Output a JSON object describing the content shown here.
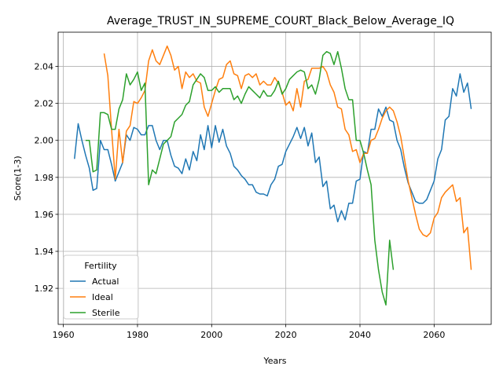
{
  "chart_data": {
    "type": "line",
    "title": "Average_TRUST_IN_SUPREME_COURT_Black_Below_Average_IQ",
    "xlabel": "Years",
    "ylabel": "Score(1-3)",
    "xlim": [
      1958.6,
      2075.4
    ],
    "ylim": [
      1.9005,
      2.0585
    ],
    "xticks": [
      1960,
      1980,
      2000,
      2020,
      2040,
      2060
    ],
    "yticks": [
      1.92,
      1.94,
      1.96,
      1.98,
      2.0,
      2.02,
      2.04
    ],
    "ytick_labels": [
      "1.92",
      "1.94",
      "1.96",
      "1.98",
      "2.00",
      "2.02",
      "2.04"
    ],
    "grid": true,
    "legend": {
      "title": "Fertility",
      "placement": "lower-left"
    },
    "series": [
      {
        "name": "Actual",
        "color": "#1f77b4",
        "x": [
          1963,
          1964,
          1965,
          1966,
          1967,
          1968,
          1969,
          1970,
          1971,
          1972,
          1973,
          1974,
          1975,
          1976,
          1977,
          1978,
          1979,
          1980,
          1981,
          1982,
          1983,
          1984,
          1985,
          1986,
          1987,
          1988,
          1989,
          1990,
          1991,
          1992,
          1993,
          1994,
          1995,
          1996,
          1997,
          1998,
          1999,
          2000,
          2001,
          2002,
          2003,
          2004,
          2005,
          2006,
          2007,
          2008,
          2009,
          2010,
          2011,
          2012,
          2013,
          2014,
          2015,
          2016,
          2017,
          2018,
          2019,
          2020,
          2021,
          2022,
          2023,
          2024,
          2025,
          2026,
          2027,
          2028,
          2029,
          2030,
          2031,
          2032,
          2033,
          2034,
          2035,
          2036,
          2037,
          2038,
          2039,
          2040,
          2041,
          2042,
          2043,
          2044,
          2045,
          2046,
          2047,
          2048,
          2049,
          2050,
          2051,
          2052,
          2053,
          2054,
          2055,
          2056,
          2057,
          2058,
          2059,
          2060,
          2061,
          2062,
          2063,
          2064,
          2065,
          2066,
          2067,
          2068,
          2069,
          2070
        ],
        "values": [
          1.99,
          2.009,
          2.0,
          1.992,
          1.985,
          1.973,
          1.974,
          2.0,
          1.995,
          1.995,
          1.987,
          1.978,
          1.983,
          1.988,
          2.003,
          2.0,
          2.007,
          2.006,
          2.003,
          2.003,
          2.008,
          2.008,
          2.0,
          1.995,
          2.0,
          2.0,
          1.992,
          1.986,
          1.985,
          1.982,
          1.99,
          1.984,
          1.994,
          1.989,
          2.003,
          1.995,
          2.008,
          1.996,
          2.008,
          1.999,
          2.006,
          1.997,
          1.993,
          1.986,
          1.984,
          1.981,
          1.979,
          1.976,
          1.976,
          1.972,
          1.971,
          1.971,
          1.97,
          1.976,
          1.979,
          1.986,
          1.987,
          1.994,
          1.998,
          2.002,
          2.007,
          2.001,
          2.007,
          1.997,
          2.004,
          1.988,
          1.991,
          1.975,
          1.978,
          1.963,
          1.965,
          1.956,
          1.962,
          1.957,
          1.966,
          1.966,
          1.978,
          1.979,
          1.994,
          1.993,
          2.006,
          2.006,
          2.017,
          2.013,
          2.018,
          2.011,
          2.01,
          2.0,
          1.995,
          1.985,
          1.977,
          1.972,
          1.967,
          1.966,
          1.966,
          1.968,
          1.973,
          1.978,
          1.99,
          1.995,
          2.011,
          2.013,
          2.028,
          2.024,
          2.036,
          2.026,
          2.031,
          2.017
        ]
      },
      {
        "name": "Ideal",
        "color": "#ff7f0e",
        "x": [
          1971,
          1972,
          1973,
          1974,
          1975,
          1976,
          1977,
          1978,
          1979,
          1980,
          1981,
          1982,
          1983,
          1984,
          1985,
          1986,
          1987,
          1988,
          1989,
          1990,
          1991,
          1992,
          1993,
          1994,
          1995,
          1996,
          1997,
          1998,
          1999,
          2000,
          2001,
          2002,
          2003,
          2004,
          2005,
          2006,
          2007,
          2008,
          2009,
          2010,
          2011,
          2012,
          2013,
          2014,
          2015,
          2016,
          2017,
          2018,
          2019,
          2020,
          2021,
          2022,
          2023,
          2024,
          2025,
          2026,
          2027,
          2028,
          2029,
          2030,
          2031,
          2032,
          2033,
          2034,
          2035,
          2036,
          2037,
          2038,
          2039,
          2040,
          2041,
          2042,
          2043,
          2044,
          2045,
          2046,
          2047,
          2048,
          2049,
          2050,
          2051,
          2052,
          2053,
          2054,
          2055,
          2056,
          2057,
          2058,
          2059,
          2060,
          2061,
          2062,
          2063,
          2064,
          2065,
          2066,
          2067,
          2068,
          2069,
          2070
        ],
        "values": [
          2.047,
          2.035,
          2.006,
          1.979,
          2.006,
          1.988,
          2.005,
          2.008,
          2.021,
          2.02,
          2.023,
          2.027,
          2.043,
          2.049,
          2.043,
          2.041,
          2.046,
          2.051,
          2.046,
          2.038,
          2.04,
          2.028,
          2.037,
          2.034,
          2.036,
          2.032,
          2.031,
          2.018,
          2.013,
          2.02,
          2.027,
          2.033,
          2.034,
          2.041,
          2.043,
          2.036,
          2.035,
          2.028,
          2.035,
          2.036,
          2.034,
          2.036,
          2.03,
          2.032,
          2.03,
          2.03,
          2.034,
          2.031,
          2.026,
          2.019,
          2.021,
          2.016,
          2.028,
          2.018,
          2.032,
          2.033,
          2.039,
          2.039,
          2.039,
          2.04,
          2.037,
          2.03,
          2.026,
          2.018,
          2.017,
          2.006,
          2.003,
          1.994,
          1.995,
          1.988,
          1.993,
          1.993,
          2.0,
          2.001,
          2.006,
          2.012,
          2.016,
          2.018,
          2.016,
          2.01,
          2.002,
          1.99,
          1.978,
          1.969,
          1.96,
          1.952,
          1.949,
          1.948,
          1.95,
          1.958,
          1.961,
          1.969,
          1.972,
          1.974,
          1.976,
          1.967,
          1.969,
          1.95,
          1.953,
          1.93
        ]
      },
      {
        "name": "Sterile",
        "color": "#2ca02c",
        "x": [
          1966,
          1967,
          1968,
          1969,
          1970,
          1971,
          1972,
          1973,
          1974,
          1975,
          1976,
          1977,
          1978,
          1979,
          1980,
          1981,
          1982,
          1983,
          1984,
          1985,
          1986,
          1987,
          1988,
          1989,
          1990,
          1991,
          1992,
          1993,
          1994,
          1995,
          1996,
          1997,
          1998,
          1999,
          2000,
          2001,
          2002,
          2003,
          2004,
          2005,
          2006,
          2007,
          2008,
          2009,
          2010,
          2011,
          2012,
          2013,
          2014,
          2015,
          2016,
          2017,
          2018,
          2019,
          2020,
          2021,
          2022,
          2023,
          2024,
          2025,
          2026,
          2027,
          2028,
          2029,
          2030,
          2031,
          2032,
          2033,
          2034,
          2035,
          2036,
          2037,
          2038,
          2039,
          2040,
          2041,
          2042,
          2043,
          2044,
          2045,
          2046,
          2047,
          2048,
          2049
        ],
        "values": [
          2.0,
          2.0,
          1.983,
          1.984,
          2.015,
          2.015,
          2.014,
          2.006,
          2.006,
          2.017,
          2.022,
          2.036,
          2.03,
          2.033,
          2.037,
          2.027,
          2.031,
          1.976,
          1.984,
          1.982,
          1.99,
          1.998,
          2.0,
          2.002,
          2.01,
          2.012,
          2.014,
          2.019,
          2.021,
          2.03,
          2.033,
          2.036,
          2.034,
          2.027,
          2.027,
          2.029,
          2.026,
          2.028,
          2.028,
          2.028,
          2.022,
          2.024,
          2.02,
          2.025,
          2.029,
          2.027,
          2.025,
          2.023,
          2.027,
          2.024,
          2.024,
          2.027,
          2.032,
          2.025,
          2.028,
          2.033,
          2.035,
          2.037,
          2.038,
          2.037,
          2.028,
          2.03,
          2.025,
          2.033,
          2.046,
          2.048,
          2.047,
          2.041,
          2.048,
          2.039,
          2.028,
          2.022,
          2.022,
          2.0,
          2.0,
          1.993,
          1.984,
          1.976,
          1.946,
          1.93,
          1.918,
          1.911,
          1.946,
          1.93
        ]
      }
    ]
  }
}
